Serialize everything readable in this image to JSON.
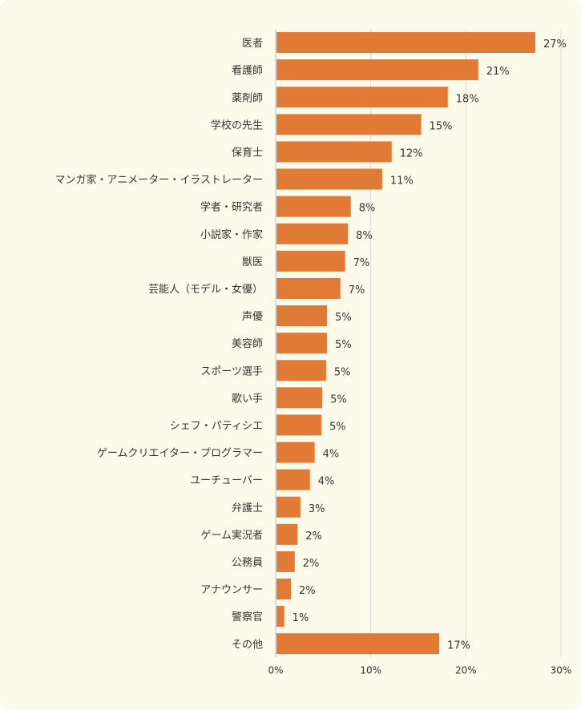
{
  "chart_data": {
    "type": "bar",
    "orientation": "horizontal",
    "title": "",
    "xlabel": "",
    "ylabel": "",
    "categories": [
      "医者",
      "看護師",
      "薬剤師",
      "学校の先生",
      "保育士",
      "マンガ家・アニメーター・イラストレーター",
      "学者・研究者",
      "小説家・作家",
      "獣医",
      "芸能人（モデル・女優）",
      "声優",
      "美容師",
      "スポーツ選手",
      "歌い手",
      "シェフ・パティシエ",
      "ゲームクリエイター・プログラマー",
      "ユーチューバー",
      "弁護士",
      "ゲーム実況者",
      "公務員",
      "アナウンサー",
      "警察官",
      "その他"
    ],
    "values": [
      27.3,
      21.3,
      18.1,
      15.3,
      12.2,
      11.2,
      7.9,
      7.6,
      7.3,
      6.8,
      5.4,
      5.4,
      5.3,
      4.9,
      4.8,
      4.1,
      3.6,
      2.6,
      2.3,
      2.0,
      1.6,
      0.9,
      17.2
    ],
    "value_labels": [
      "27%",
      "21%",
      "18%",
      "15%",
      "12%",
      "11%",
      "8%",
      "8%",
      "7%",
      "7%",
      "5%",
      "5%",
      "5%",
      "5%",
      "5%",
      "4%",
      "4%",
      "3%",
      "2%",
      "2%",
      "2%",
      "1%",
      "17%"
    ],
    "xlim": [
      0,
      30
    ],
    "ticks": [
      0,
      10,
      20,
      30
    ],
    "tick_labels": [
      "0%",
      "10%",
      "20%",
      "30%"
    ],
    "grid": true,
    "legend": "none",
    "colors": {
      "bar": "#E07A35",
      "background": "#FCFBEB",
      "grid": "#D9D9D9",
      "axis": "#BFBFBF",
      "text": "#333333"
    }
  }
}
